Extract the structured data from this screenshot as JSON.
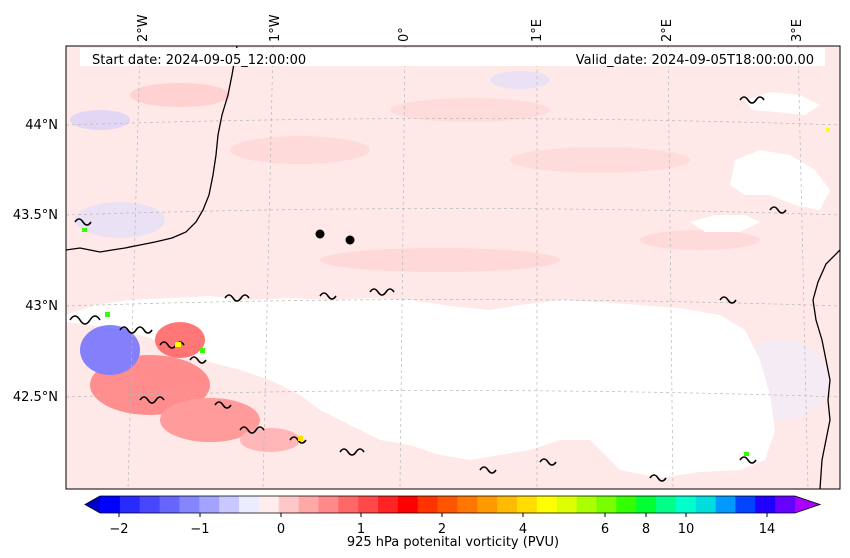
{
  "map": {
    "start_label": "Start date: 2024-09-05_12:00:00",
    "valid_label": "Valid_date: 2024-09-05T18:00:00.00",
    "lon_ticks": [
      "2°W",
      "1°W",
      "0°",
      "1°E",
      "2°E",
      "3°E"
    ],
    "lat_ticks": [
      "44°N",
      "43.5°N",
      "43°N",
      "42.5°N"
    ],
    "field_name": "925 hPa potential vorticity",
    "background_color": "#ffe8e8",
    "gridline_color": "#b8b8b8",
    "coastline_color": "#000000",
    "markers": [
      {
        "name": "point-a"
      },
      {
        "name": "point-b"
      }
    ]
  },
  "colorbar": {
    "label": "925 hPa potenital vorticity (PVU)",
    "tick_labels": [
      "−2",
      "−1",
      "0",
      "1",
      "2",
      "4",
      "6",
      "8",
      "10",
      "14"
    ],
    "levels": [
      -2,
      -1.75,
      -1.5,
      -1.25,
      -1,
      -0.75,
      -0.5,
      -0.25,
      0,
      0.25,
      0.5,
      0.75,
      1,
      1.25,
      1.5,
      1.75,
      2,
      2.5,
      3,
      3.5,
      4,
      4.5,
      5,
      5.5,
      6,
      6.5,
      7,
      7.5,
      8,
      8.5,
      9,
      10,
      11,
      12,
      13,
      14
    ],
    "extend": "both",
    "colors": [
      "#0000ff",
      "#2a2aff",
      "#4747ff",
      "#6666ff",
      "#8585ff",
      "#a3a3ff",
      "#c8c8ff",
      "#ececff",
      "#ffecec",
      "#ffc8c8",
      "#ffa8a8",
      "#ff8888",
      "#ff6868",
      "#ff4848",
      "#ff2424",
      "#ff0000",
      "#ff3300",
      "#ff5500",
      "#ff7700",
      "#ff9900",
      "#ffbb00",
      "#ffdd00",
      "#ffff00",
      "#ddff00",
      "#aaff00",
      "#77ff00",
      "#33ff00",
      "#00ff33",
      "#00ff88",
      "#00ffcc",
      "#00dddd",
      "#0099ff",
      "#0044ff",
      "#2200ff",
      "#6600ff"
    ],
    "under_color": "#0000cc",
    "over_color": "#aa00ff"
  }
}
